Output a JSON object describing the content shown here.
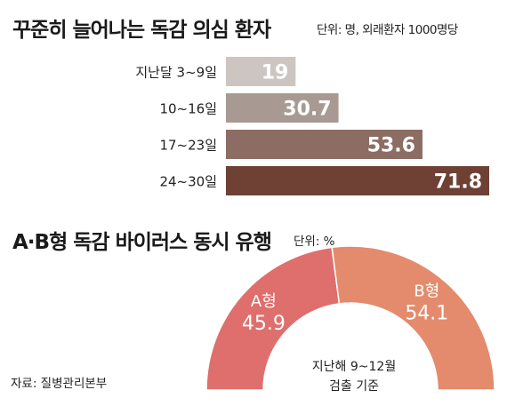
{
  "header1": {
    "title": "꾸준히 늘어나는 독감 의심 환자",
    "unit": "단위: 명, 외래환자 1000명당"
  },
  "header2": {
    "title": "A·B형 독감 바이러스 동시 유행",
    "unit": "단위: %"
  },
  "source": "자료: 질병관리본부",
  "colors": {
    "bars": [
      "#cdc5c1",
      "#a89a93",
      "#8c6d63",
      "#6e4134"
    ],
    "slice_a": "#de6f6c",
    "slice_b": "#e38b6c"
  },
  "chart_data": [
    {
      "type": "bar",
      "orientation": "horizontal",
      "categories": [
        "지난달 3~9일",
        "10~16일",
        "17~23일",
        "24~30일"
      ],
      "values": [
        19,
        30.7,
        53.6,
        71.8
      ],
      "value_labels": [
        "19",
        "30.7",
        "53.6",
        "71.8"
      ]
    },
    {
      "type": "pie",
      "style": "semicircle donut",
      "slices": [
        {
          "label": "A형",
          "value": 45.9,
          "value_label": "45.9"
        },
        {
          "label": "B형",
          "value": 54.1,
          "value_label": "54.1"
        }
      ],
      "center_note": [
        "지난해 9~12월",
        "검출 기준"
      ]
    }
  ]
}
